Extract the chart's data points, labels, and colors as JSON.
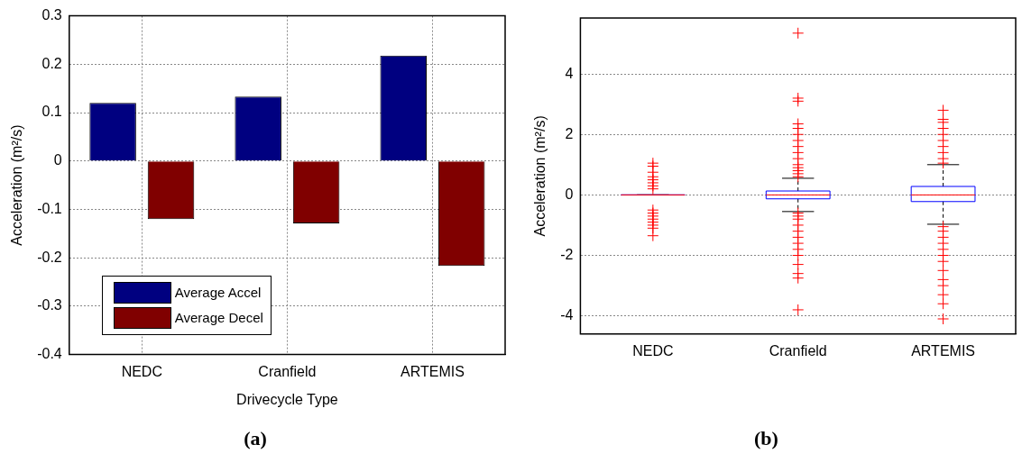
{
  "chart_data": [
    {
      "type": "bar",
      "categories": [
        "NEDC",
        "Cranfield",
        "ARTEMIS"
      ],
      "xlabel": "Drivecycle Type",
      "ylabel": "Acceleration (m²/s)",
      "series": [
        {
          "name": "Average Accel",
          "color": "#000080",
          "values": [
            0.12,
            0.133,
            0.218
          ]
        },
        {
          "name": "Average Decel",
          "color": "#800000",
          "values": [
            -0.12,
            -0.129,
            -0.217
          ]
        }
      ],
      "ylim": [
        -0.4,
        0.3
      ],
      "yticks": [
        -0.4,
        -0.3,
        -0.2,
        -0.1,
        0,
        0.1,
        0.2,
        0.3
      ],
      "grid": true,
      "legend": "bottom left",
      "annotations": [
        "(a)"
      ]
    },
    {
      "type": "box",
      "categories": [
        "NEDC",
        "Cranfield",
        "ARTEMIS"
      ],
      "ylabel": "Acceleration (m²/s)",
      "color": "#0000ff",
      "marker": "cross",
      "boxes": [
        {
          "low": 0,
          "q1": 0,
          "median": 0,
          "q3": 0,
          "high": 0,
          "outliers": [
            1.05,
            0.95,
            0.75,
            0.6,
            0.5,
            0.4,
            0.3,
            0.2,
            -0.5,
            -0.6,
            -0.7,
            -0.8,
            -0.9,
            -1.0,
            -1.1,
            -1.35
          ]
        },
        {
          "low": -0.55,
          "q1": -0.13,
          "median": 0,
          "q3": 0.13,
          "high": 0.55,
          "outliers": [
            5.35,
            3.2,
            3.1,
            2.35,
            2.2,
            2.0,
            1.8,
            1.6,
            1.4,
            1.2,
            1.0,
            0.9,
            0.8,
            0.7,
            0.6,
            -0.6,
            -0.7,
            -0.8,
            -1.0,
            -1.2,
            -1.4,
            -1.6,
            -1.8,
            -2.0,
            -2.3,
            -2.6,
            -2.75,
            -3.8
          ]
        },
        {
          "low": -0.97,
          "q1": -0.22,
          "median": 0,
          "q3": 0.28,
          "high": 1.0,
          "outliers": [
            2.8,
            2.5,
            2.4,
            2.2,
            2.0,
            1.8,
            1.6,
            1.4,
            1.2,
            1.05,
            -1.05,
            -1.2,
            -1.4,
            -1.6,
            -1.8,
            -2.0,
            -2.2,
            -2.5,
            -2.8,
            -3.0,
            -3.3,
            -3.6,
            -4.1
          ]
        }
      ],
      "ylim": [
        -4.6,
        5.85
      ],
      "yticks": [
        -4,
        -2,
        0,
        2,
        4
      ],
      "grid": "y",
      "annotations": [
        "(b)"
      ]
    }
  ]
}
